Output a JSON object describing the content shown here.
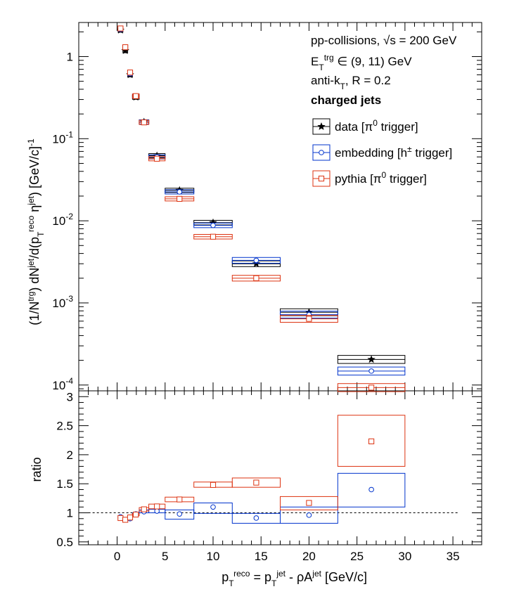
{
  "chart_data": [
    {
      "panel": "top",
      "type": "scatter",
      "ylabel": "(1/N^trg) dN^jet/d(p_T^reco η^jet) [GeV/c]^-1",
      "yscale": "log",
      "ylim": [
        8.5e-05,
        2.6
      ],
      "xlim": [
        -4,
        38
      ],
      "y_ticks": [
        "10^-4",
        "10^-3",
        "10^-2",
        "10^-1",
        "1"
      ],
      "annotations": [
        "pp-collisions, √s = 200 GeV",
        "E_T^trg ∈ (9, 11) GeV",
        "anti-k_T, R = 0.2",
        "charged jets"
      ],
      "legend": {
        "placement": "top-right",
        "entries": [
          "data [π^0 trigger]",
          "embedding [h^± trigger]",
          "pythia [π^0 trigger]"
        ]
      },
      "series": [
        {
          "name": "data [π0 trigger]",
          "color": "#000000",
          "marker": "star",
          "points": [
            {
              "x": 0.35,
              "xlo": 0.1,
              "xhi": 0.6,
              "y": 2.1
            },
            {
              "x": 0.85,
              "xlo": 0.6,
              "xhi": 1.1,
              "y": 1.18
            },
            {
              "x": 1.35,
              "xlo": 1.1,
              "xhi": 1.6,
              "y": 0.6
            },
            {
              "x": 1.95,
              "xlo": 1.6,
              "xhi": 2.3,
              "y": 0.32
            },
            {
              "x": 2.8,
              "xlo": 2.3,
              "xhi": 3.3,
              "y": 0.16
            },
            {
              "x": 4.15,
              "xlo": 3.3,
              "xhi": 5.0,
              "y": 0.062
            },
            {
              "x": 6.5,
              "xlo": 5.0,
              "xhi": 8.0,
              "y": 0.0235
            },
            {
              "x": 10.0,
              "xlo": 8.0,
              "xhi": 12.0,
              "y": 0.0095
            },
            {
              "x": 14.5,
              "xlo": 12.0,
              "xhi": 17.0,
              "y": 0.003
            },
            {
              "x": 20.0,
              "xlo": 17.0,
              "xhi": 23.0,
              "y": 0.00077
            },
            {
              "x": 26.5,
              "xlo": 23.0,
              "xhi": 30.0,
              "y": 0.000205
            }
          ]
        },
        {
          "name": "embedding [h± trigger]",
          "color": "#0033cc",
          "marker": "circle",
          "points": [
            {
              "x": 0.35,
              "xlo": 0.1,
              "xhi": 0.6,
              "y": 2.15
            },
            {
              "x": 0.85,
              "xlo": 0.6,
              "xhi": 1.1,
              "y": 1.3
            },
            {
              "x": 1.35,
              "xlo": 1.1,
              "xhi": 1.6,
              "y": 0.62
            },
            {
              "x": 1.95,
              "xlo": 1.6,
              "xhi": 2.3,
              "y": 0.33
            },
            {
              "x": 2.8,
              "xlo": 2.3,
              "xhi": 3.3,
              "y": 0.16
            },
            {
              "x": 4.15,
              "xlo": 3.3,
              "xhi": 5.0,
              "y": 0.06
            },
            {
              "x": 6.5,
              "xlo": 5.0,
              "xhi": 8.0,
              "y": 0.0225
            },
            {
              "x": 10.0,
              "xlo": 8.0,
              "xhi": 12.0,
              "y": 0.0088
            },
            {
              "x": 14.5,
              "xlo": 12.0,
              "xhi": 17.0,
              "y": 0.0033
            },
            {
              "x": 20.0,
              "xlo": 17.0,
              "xhi": 23.0,
              "y": 0.00072
            },
            {
              "x": 26.5,
              "xlo": 23.0,
              "xhi": 30.0,
              "y": 0.000148
            }
          ]
        },
        {
          "name": "pythia [π0 trigger]",
          "color": "#dd3311",
          "marker": "square",
          "points": [
            {
              "x": 0.35,
              "xlo": 0.1,
              "xhi": 0.6,
              "y": 2.2
            },
            {
              "x": 0.85,
              "xlo": 0.6,
              "xhi": 1.1,
              "y": 1.3
            },
            {
              "x": 1.35,
              "xlo": 1.1,
              "xhi": 1.6,
              "y": 0.64
            },
            {
              "x": 1.95,
              "xlo": 1.6,
              "xhi": 2.3,
              "y": 0.33
            },
            {
              "x": 2.8,
              "xlo": 2.3,
              "xhi": 3.3,
              "y": 0.158
            },
            {
              "x": 4.15,
              "xlo": 3.3,
              "xhi": 5.0,
              "y": 0.057
            },
            {
              "x": 6.5,
              "xlo": 5.0,
              "xhi": 8.0,
              "y": 0.0185
            },
            {
              "x": 10.0,
              "xlo": 8.0,
              "xhi": 12.0,
              "y": 0.0064
            },
            {
              "x": 14.5,
              "xlo": 12.0,
              "xhi": 17.0,
              "y": 0.002
            },
            {
              "x": 20.0,
              "xlo": 17.0,
              "xhi": 23.0,
              "y": 0.00064
            },
            {
              "x": 26.5,
              "xlo": 23.0,
              "xhi": 30.0,
              "y": 9.3e-05
            }
          ]
        }
      ]
    },
    {
      "panel": "bottom",
      "type": "scatter",
      "xlabel": "p_T^reco = p_T^jet - ρA^jet [GeV/c]",
      "ylabel": "ratio",
      "ylim": [
        0.45,
        3.1
      ],
      "xlim": [
        -4,
        38
      ],
      "x_ticks": [
        0,
        5,
        10,
        15,
        20,
        25,
        30,
        35
      ],
      "y_ticks": [
        0.5,
        1,
        1.5,
        2,
        2.5,
        3
      ],
      "reference_line": 1,
      "series": [
        {
          "name": "embedding [h± trigger]",
          "color": "#0033cc",
          "marker": "circle",
          "points": [
            {
              "x": 0.35,
              "xlo": 0.1,
              "xhi": 0.6,
              "y": 0.93,
              "ylo": 0.91,
              "yhi": 0.95
            },
            {
              "x": 0.85,
              "xlo": 0.6,
              "xhi": 1.1,
              "y": 0.88,
              "ylo": 0.86,
              "yhi": 0.9
            },
            {
              "x": 1.35,
              "xlo": 1.1,
              "xhi": 1.6,
              "y": 0.9,
              "ylo": 0.88,
              "yhi": 0.92
            },
            {
              "x": 1.95,
              "xlo": 1.6,
              "xhi": 2.3,
              "y": 0.98,
              "ylo": 0.96,
              "yhi": 1.0
            },
            {
              "x": 2.8,
              "xlo": 2.3,
              "xhi": 3.3,
              "y": 1.02,
              "ylo": 1.0,
              "yhi": 1.05
            },
            {
              "x": 4.15,
              "xlo": 3.3,
              "xhi": 5.0,
              "y": 1.03,
              "ylo": 1.0,
              "yhi": 1.06
            },
            {
              "x": 6.5,
              "xlo": 5.0,
              "xhi": 8.0,
              "y": 0.98,
              "ylo": 0.89,
              "yhi": 1.05
            },
            {
              "x": 10.0,
              "xlo": 8.0,
              "xhi": 12.0,
              "y": 1.1,
              "ylo": 0.99,
              "yhi": 1.17
            },
            {
              "x": 14.5,
              "xlo": 12.0,
              "xhi": 17.0,
              "y": 0.91,
              "ylo": 0.82,
              "yhi": 0.99
            },
            {
              "x": 20.0,
              "xlo": 17.0,
              "xhi": 23.0,
              "y": 0.96,
              "ylo": 0.82,
              "yhi": 1.1
            },
            {
              "x": 26.5,
              "xlo": 23.0,
              "xhi": 30.0,
              "y": 1.4,
              "ylo": 1.1,
              "yhi": 1.68
            }
          ]
        },
        {
          "name": "pythia [π0 trigger]",
          "color": "#dd3311",
          "marker": "square",
          "points": [
            {
              "x": 0.35,
              "xlo": 0.1,
              "xhi": 0.6,
              "y": 0.91,
              "ylo": 0.89,
              "yhi": 0.93
            },
            {
              "x": 0.85,
              "xlo": 0.6,
              "xhi": 1.1,
              "y": 0.88,
              "ylo": 0.86,
              "yhi": 0.9
            },
            {
              "x": 1.35,
              "xlo": 1.1,
              "xhi": 1.6,
              "y": 0.92,
              "ylo": 0.9,
              "yhi": 0.94
            },
            {
              "x": 1.95,
              "xlo": 1.6,
              "xhi": 2.3,
              "y": 0.97,
              "ylo": 0.95,
              "yhi": 0.99
            },
            {
              "x": 2.8,
              "xlo": 2.3,
              "xhi": 3.3,
              "y": 1.06,
              "ylo": 1.03,
              "yhi": 1.09
            },
            {
              "x": 4.15,
              "xlo": 3.3,
              "xhi": 5.0,
              "y": 1.11,
              "ylo": 1.07,
              "yhi": 1.15
            },
            {
              "x": 6.5,
              "xlo": 5.0,
              "xhi": 8.0,
              "y": 1.23,
              "ylo": 1.19,
              "yhi": 1.27
            },
            {
              "x": 10.0,
              "xlo": 8.0,
              "xhi": 12.0,
              "y": 1.48,
              "ylo": 1.44,
              "yhi": 1.53
            },
            {
              "x": 14.5,
              "xlo": 12.0,
              "xhi": 17.0,
              "y": 1.52,
              "ylo": 1.44,
              "yhi": 1.6
            },
            {
              "x": 20.0,
              "xlo": 17.0,
              "xhi": 23.0,
              "y": 1.17,
              "ylo": 1.05,
              "yhi": 1.28
            },
            {
              "x": 26.5,
              "xlo": 23.0,
              "xhi": 30.0,
              "y": 2.23,
              "ylo": 1.8,
              "yhi": 2.68
            }
          ]
        }
      ]
    }
  ]
}
